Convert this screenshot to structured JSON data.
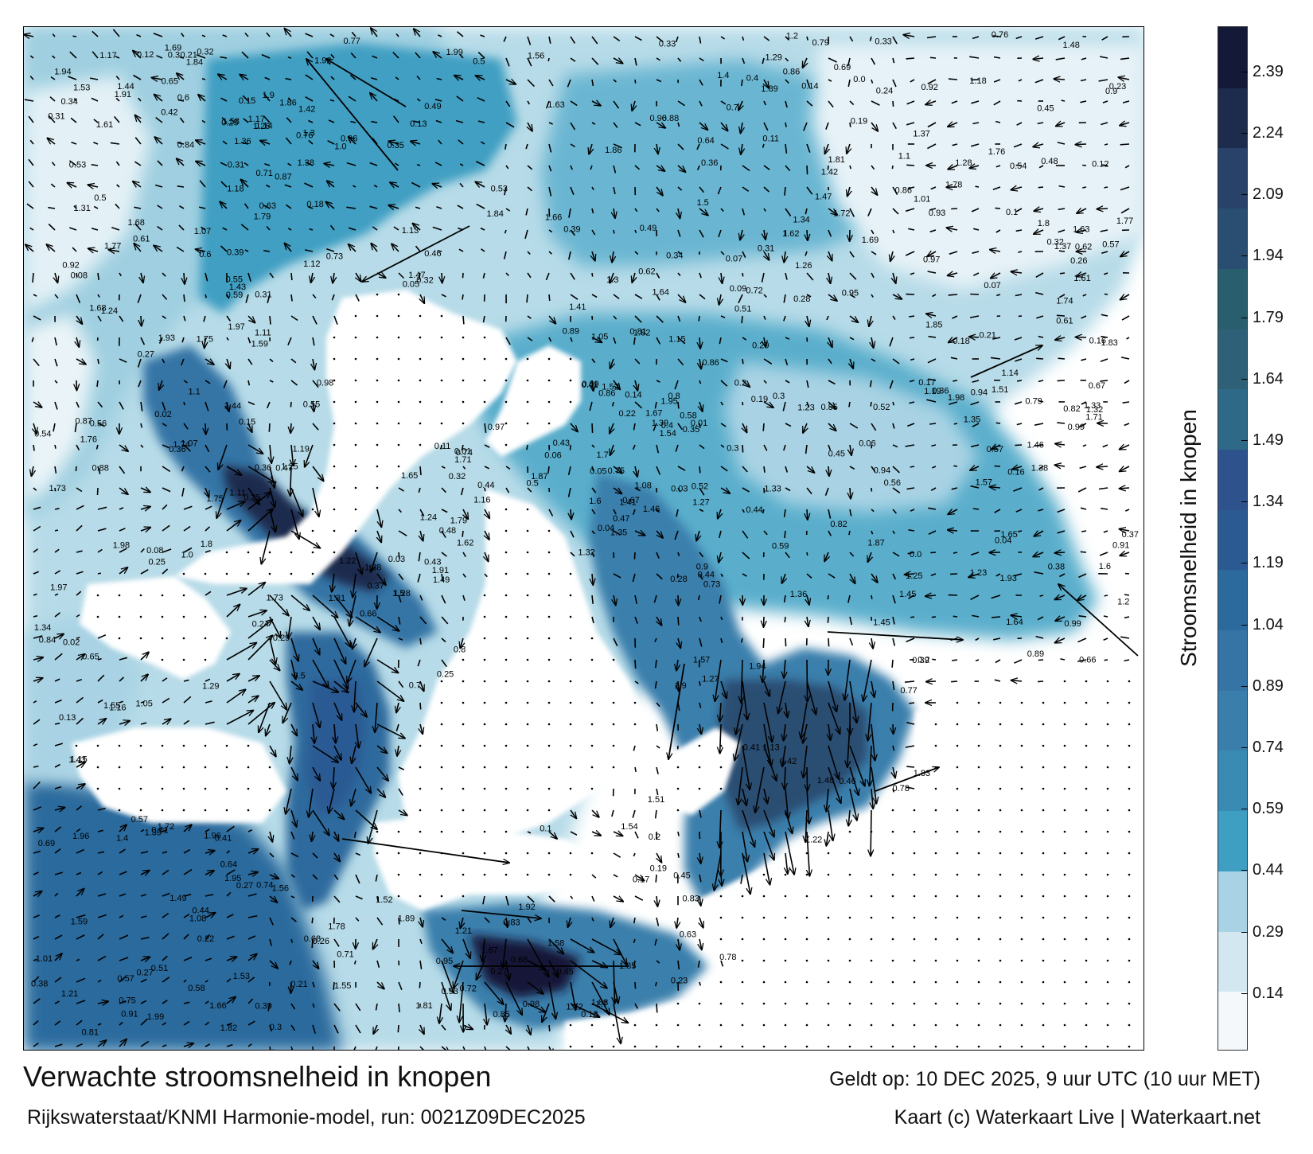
{
  "map": {
    "title": "Verwachte stroomsnelheid in knopen",
    "valid_time": "Geldt op: 10 DEC 2025, 9 uur UTC (10 uur MET)",
    "model_run": "Rijkswaterstaat/KNMI Harmonie-model, run: 0021Z09DEC2025",
    "credit": "Kaart (c) Waterkaart Live | Waterkaart.net"
  },
  "colorbar": {
    "title": "Stroomsnelheid in knopen",
    "ticks": [
      "0.14",
      "0.29",
      "0.44",
      "0.59",
      "0.74",
      "0.89",
      "1.04",
      "1.19",
      "1.34",
      "1.49",
      "1.64",
      "1.79",
      "1.94",
      "2.09",
      "2.24",
      "2.39"
    ],
    "range": [
      0,
      2.5
    ],
    "colors": [
      "#f4f8fb",
      "#d3e7f0",
      "#a9d3e4",
      "#3f9fc2",
      "#3a8bb4",
      "#3a7fac",
      "#3674a6",
      "#2c6a9d",
      "#2b5a93",
      "#2e528b",
      "#2e6a87",
      "#2e6078",
      "#285e6e",
      "#2a4e72",
      "#28426a",
      "#1d2c4d",
      "#151938"
    ]
  },
  "speed_labels": [
    "0.36",
    "0.32",
    "0.18",
    "0.46",
    "0.44",
    "0.25",
    "0.31",
    "0.3",
    "0.45",
    "0.41",
    "0.37",
    "0.19",
    "0.87",
    "0.35",
    "0.44",
    "0.22",
    "0.21",
    "0.27",
    "0.39",
    "0.42",
    "0.64",
    "0.65",
    "0.71",
    "0.84",
    "0.86",
    "1.11",
    "1.22",
    "1.37",
    "1.36",
    "0.61",
    "0.57",
    "0.47",
    "0.23",
    "0.25",
    "0.88",
    "0.15",
    "0.17",
    "0.13",
    "0.06",
    "0.08",
    "0.27",
    "0.09",
    "0.05",
    "0.11",
    "0.2",
    "0.12",
    "0.04",
    "0.16",
    "0.14",
    "0.1",
    "0.01",
    "0.03",
    "0.02",
    "0.07",
    "0.4",
    "0.5",
    "0.55",
    "0.34",
    "0.38",
    "0.53",
    "0.59",
    "0.24",
    "0.29",
    "0.33",
    "0.28",
    "0.26",
    "0.72",
    "0.69",
    "0.74",
    "0.93",
    "0.82",
    "0.81",
    "0.78",
    "0.77",
    "0.63",
    "0.58",
    "0.54",
    "0.48",
    "0.52",
    "0.66",
    "0.68",
    "0.75",
    "0.76",
    "0.79",
    "0.83",
    "0.89",
    "0.91",
    "0.92",
    "0.97",
    "1.05",
    "1.07",
    "1.12",
    "1.14",
    "1.18",
    "1.19",
    "1.2",
    "1.24",
    "1.26",
    "1.27",
    "1.33",
    "1.34",
    "1.38",
    "1.41",
    "1.42",
    "1.43",
    "1.45",
    "1.49",
    "1.5",
    "1.52",
    "1.53",
    "1.56",
    "1.57",
    "1.61",
    "1.62",
    "1.65",
    "1.66",
    "1.73",
    "1.78",
    "1.79",
    "1.81",
    "1.83",
    "1.85",
    "1.89",
    "1.9",
    "1.93",
    "1.99",
    "0.0",
    "0.43",
    "0.49",
    "0.51",
    "0.56",
    "0.6",
    "0.62",
    "0.67",
    "0.7",
    "0.73",
    "0.8",
    "0.85",
    "0.86",
    "0.9",
    "0.95",
    "0.98",
    "1.0",
    "1.01",
    "1.08",
    "1.1",
    "1.13",
    "1.15",
    "1.16",
    "1.17",
    "1.21",
    "1.23",
    "1.25",
    "1.28",
    "1.29",
    "1.3",
    "1.31",
    "1.32",
    "1.35",
    "1.39",
    "1.4",
    "1.44",
    "1.46",
    "1.47",
    "1.48",
    "1.51",
    "1.54",
    "1.55",
    "1.58",
    "1.59",
    "1.6",
    "1.63",
    "1.64",
    "1.67",
    "1.68",
    "1.69",
    "1.7",
    "1.71",
    "1.72",
    "1.74",
    "1.75",
    "1.76",
    "1.77",
    "1.8",
    "1.82",
    "1.84",
    "1.86",
    "1.87",
    "1.88",
    "1.91",
    "1.92",
    "1.94",
    "1.95",
    "1.96",
    "1.97",
    "1.98",
    "0.99",
    "0.94",
    "0.96",
    "0.57",
    "0.39",
    "0.45",
    "0.36",
    "0.5",
    "0.41",
    "0.32",
    "0.31",
    "0.3",
    "0.21",
    "0.2",
    "0.18",
    "0.19"
  ]
}
